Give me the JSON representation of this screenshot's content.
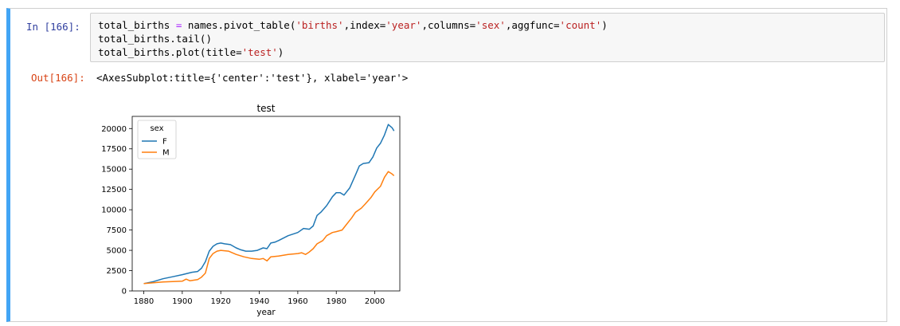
{
  "cell": {
    "in_prompt": "In  [166]:",
    "out_prompt": "Out[166]:",
    "code_lines": [
      [
        {
          "t": "total_births "
        },
        {
          "t": "=",
          "c": "o"
        },
        {
          "t": " names.pivot_table("
        },
        {
          "t": "'births'",
          "c": "s"
        },
        {
          "t": ",index="
        },
        {
          "t": "'year'",
          "c": "s"
        },
        {
          "t": ",columns="
        },
        {
          "t": "'sex'",
          "c": "s"
        },
        {
          "t": ",aggfunc="
        },
        {
          "t": "'count'",
          "c": "s"
        },
        {
          "t": ")"
        }
      ],
      [
        {
          "t": "total_births.tail()"
        }
      ],
      [
        {
          "t": "total_births.plot(title="
        },
        {
          "t": "'test'",
          "c": "s"
        },
        {
          "t": ")"
        }
      ]
    ],
    "output_text": "<AxesSubplot:title={'center':'test'}, xlabel='year'>"
  },
  "chart_data": {
    "type": "line",
    "title": "test",
    "xlabel": "year",
    "ylabel": "",
    "xlim": [
      1874,
      2013
    ],
    "ylim": [
      0,
      21500
    ],
    "xticks": [
      1880,
      1900,
      1920,
      1940,
      1960,
      1980,
      2000
    ],
    "yticks": [
      0,
      2500,
      5000,
      7500,
      10000,
      12500,
      15000,
      17500,
      20000
    ],
    "legend_title": "sex",
    "legend_position": "top-left",
    "grid": false,
    "series": [
      {
        "name": "F",
        "color": "#1f77b4",
        "points": [
          [
            1880,
            900
          ],
          [
            1885,
            1150
          ],
          [
            1890,
            1500
          ],
          [
            1895,
            1750
          ],
          [
            1900,
            2000
          ],
          [
            1905,
            2300
          ],
          [
            1908,
            2400
          ],
          [
            1910,
            2800
          ],
          [
            1912,
            3600
          ],
          [
            1914,
            4900
          ],
          [
            1916,
            5500
          ],
          [
            1918,
            5800
          ],
          [
            1920,
            5900
          ],
          [
            1922,
            5800
          ],
          [
            1925,
            5700
          ],
          [
            1928,
            5300
          ],
          [
            1930,
            5100
          ],
          [
            1933,
            4900
          ],
          [
            1936,
            4900
          ],
          [
            1939,
            5000
          ],
          [
            1942,
            5300
          ],
          [
            1944,
            5200
          ],
          [
            1946,
            5900
          ],
          [
            1948,
            6000
          ],
          [
            1950,
            6200
          ],
          [
            1955,
            6800
          ],
          [
            1960,
            7200
          ],
          [
            1963,
            7700
          ],
          [
            1966,
            7600
          ],
          [
            1968,
            8000
          ],
          [
            1970,
            9300
          ],
          [
            1972,
            9700
          ],
          [
            1975,
            10500
          ],
          [
            1978,
            11600
          ],
          [
            1980,
            12100
          ],
          [
            1982,
            12100
          ],
          [
            1984,
            11800
          ],
          [
            1987,
            12700
          ],
          [
            1990,
            14300
          ],
          [
            1992,
            15400
          ],
          [
            1994,
            15700
          ],
          [
            1997,
            15800
          ],
          [
            1999,
            16500
          ],
          [
            2001,
            17600
          ],
          [
            2003,
            18200
          ],
          [
            2005,
            19200
          ],
          [
            2007,
            20500
          ],
          [
            2009,
            20100
          ],
          [
            2010,
            19700
          ]
        ]
      },
      {
        "name": "M",
        "color": "#ff7f0e",
        "points": [
          [
            1880,
            900
          ],
          [
            1885,
            1000
          ],
          [
            1890,
            1100
          ],
          [
            1895,
            1150
          ],
          [
            1900,
            1200
          ],
          [
            1902,
            1450
          ],
          [
            1904,
            1250
          ],
          [
            1908,
            1400
          ],
          [
            1910,
            1700
          ],
          [
            1912,
            2200
          ],
          [
            1914,
            4000
          ],
          [
            1916,
            4600
          ],
          [
            1918,
            4900
          ],
          [
            1920,
            5000
          ],
          [
            1924,
            4900
          ],
          [
            1928,
            4500
          ],
          [
            1932,
            4200
          ],
          [
            1936,
            4000
          ],
          [
            1940,
            3900
          ],
          [
            1942,
            4000
          ],
          [
            1944,
            3700
          ],
          [
            1946,
            4200
          ],
          [
            1950,
            4300
          ],
          [
            1955,
            4500
          ],
          [
            1960,
            4600
          ],
          [
            1962,
            4700
          ],
          [
            1964,
            4500
          ],
          [
            1966,
            4800
          ],
          [
            1968,
            5200
          ],
          [
            1970,
            5800
          ],
          [
            1973,
            6200
          ],
          [
            1975,
            6800
          ],
          [
            1978,
            7200
          ],
          [
            1980,
            7300
          ],
          [
            1983,
            7500
          ],
          [
            1985,
            8100
          ],
          [
            1988,
            9000
          ],
          [
            1990,
            9700
          ],
          [
            1993,
            10200
          ],
          [
            1995,
            10700
          ],
          [
            1998,
            11500
          ],
          [
            2000,
            12200
          ],
          [
            2003,
            12900
          ],
          [
            2005,
            14000
          ],
          [
            2007,
            14700
          ],
          [
            2009,
            14400
          ],
          [
            2010,
            14200
          ]
        ]
      }
    ]
  }
}
